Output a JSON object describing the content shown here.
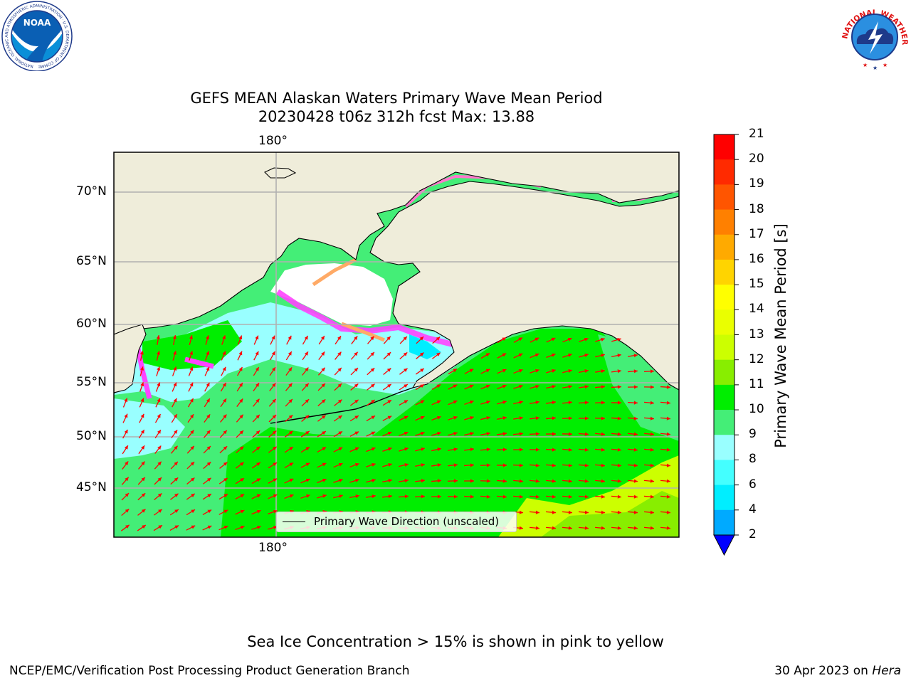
{
  "title": {
    "line1": "GEFS MEAN Alaskan Waters Primary Wave Mean Period",
    "line2": "20230428 t06z 312h fcst   Max: 13.88"
  },
  "map": {
    "lon_label_top": "180°",
    "lon_label_bottom": "180°",
    "lat_labels": [
      "70°N",
      "65°N",
      "60°N",
      "55°N",
      "50°N",
      "45°N"
    ],
    "legend_label": "Primary Wave Direction (unscaled)",
    "land_color": "#efedda",
    "arrow_color": "#ff0000"
  },
  "colorbar": {
    "label": "Primary Wave Mean Period [s]",
    "ticks": [
      "21",
      "20",
      "19",
      "18",
      "17",
      "16",
      "15",
      "14",
      "13",
      "12",
      "11",
      "10",
      "9",
      "8",
      "6",
      "4",
      "2"
    ],
    "colors": [
      "#ff0000",
      "#ff2a00",
      "#ff5500",
      "#ff8000",
      "#ffaa00",
      "#ffd400",
      "#ffff00",
      "#eaff00",
      "#ccff00",
      "#88ee00",
      "#00ee00",
      "#44ee77",
      "#99ffff",
      "#44ffff",
      "#00eeff",
      "#00aaff",
      "#0077ff",
      "#0000ff"
    ],
    "extend": "min"
  },
  "note": "Sea Ice Concentration > 15% is shown in pink to yellow",
  "footer": {
    "left": "NCEP/EMC/Verification Post Processing Product Generation Branch",
    "right_date": "30 Apr 2023 on ",
    "right_machine": "Hera"
  },
  "logos": {
    "noaa_text": "NOAA",
    "noaa_ring": "NATIONAL OCEANIC AND ATMOSPHERIC ADMINISTRATION · U.S. DEPARTMENT OF COMMERCE ·",
    "nws_ring": "NATIONAL WEATHER SERVICE"
  }
}
